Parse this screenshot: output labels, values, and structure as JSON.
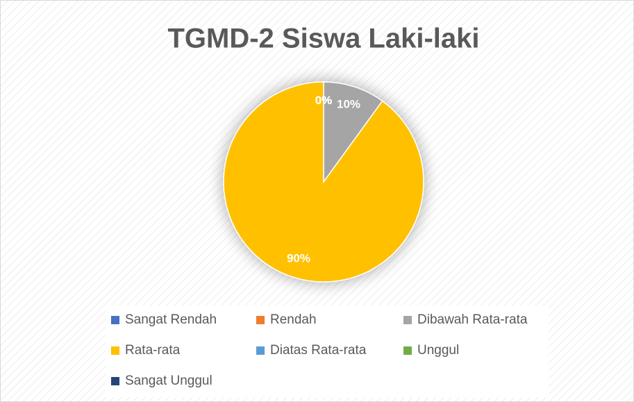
{
  "chart_data": {
    "type": "pie",
    "title": "TGMD-2 Siswa Laki-laki",
    "categories": [
      "Sangat Rendah",
      "Rendah",
      "Dibawah Rata-rata",
      "Rata-rata",
      "Diatas Rata-rata",
      "Unggul",
      "Sangat Unggul"
    ],
    "values": [
      0,
      0,
      10,
      90,
      0,
      0,
      0
    ],
    "value_labels": [
      "0%",
      "0%",
      "10%",
      "90%",
      "0%",
      "0%",
      "0%"
    ],
    "colors": [
      "#4472c4",
      "#ed7d31",
      "#a5a5a5",
      "#ffc000",
      "#5b9bd5",
      "#70ad47",
      "#264478"
    ],
    "legend": "bottom"
  }
}
